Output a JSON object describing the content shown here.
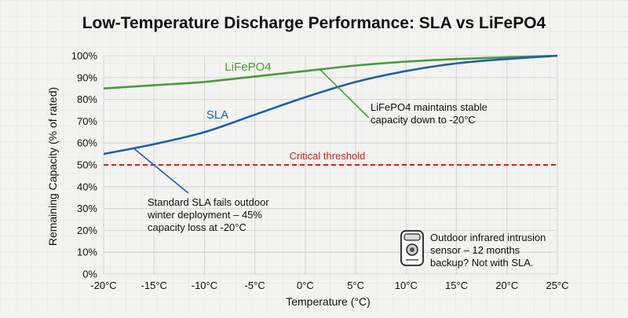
{
  "chart_data": {
    "type": "line",
    "title": "Low-Temperature Discharge Performance: SLA vs LiFePO4",
    "xlabel": "Temperature (°C)",
    "ylabel": "Remaining Capacity (% of rated)",
    "xlim": [
      -20,
      25
    ],
    "ylim": [
      0,
      100
    ],
    "x_ticks": [
      -20,
      -15,
      -10,
      -5,
      0,
      5,
      10,
      15,
      20,
      25
    ],
    "x_tick_labels": [
      "-20°C",
      "-15°C",
      "-10°C",
      "-5°C",
      "0°C",
      "5°C",
      "10°C",
      "15°C",
      "20°C",
      "25°C"
    ],
    "y_ticks": [
      0,
      10,
      20,
      30,
      40,
      50,
      60,
      70,
      80,
      90,
      100
    ],
    "y_tick_labels": [
      "0%",
      "10%",
      "20%",
      "30%",
      "40%",
      "50%",
      "60%",
      "70%",
      "80%",
      "90%",
      "100%"
    ],
    "grid": true,
    "series": [
      {
        "name": "LiFePO4",
        "color": "#4a9a3c",
        "x": [
          -20,
          -15,
          -10,
          -5,
          0,
          5,
          10,
          15,
          20,
          25
        ],
        "y": [
          85,
          86.5,
          88,
          90.5,
          93,
          95.5,
          97.3,
          98.5,
          99.3,
          100
        ]
      },
      {
        "name": "SLA",
        "color": "#1f5fa6",
        "x": [
          -20,
          -15,
          -10,
          -5,
          0,
          5,
          10,
          15,
          20,
          25
        ],
        "y": [
          55,
          59.5,
          65,
          73,
          81,
          88,
          93,
          96.5,
          98.5,
          100
        ]
      }
    ],
    "threshold": {
      "y": 50,
      "label": "Critical threshold",
      "color": "#d42020"
    },
    "annotations": [
      {
        "series": "LiFePO4",
        "text": [
          "LiFePO4 maintains stable",
          "capacity down to -20°C"
        ],
        "point": [
          1.5,
          93.5
        ]
      },
      {
        "series": "SLA",
        "text": [
          "Standard SLA fails outdoor",
          "winter deployment – 45%",
          "capacity loss at -20°C"
        ],
        "point": [
          -17,
          57.5
        ]
      }
    ],
    "callout": {
      "icon": "motion-sensor-icon",
      "text": [
        "Outdoor infrared intrusion",
        "sensor – 12 months",
        "backup? Not with SLA."
      ]
    }
  }
}
